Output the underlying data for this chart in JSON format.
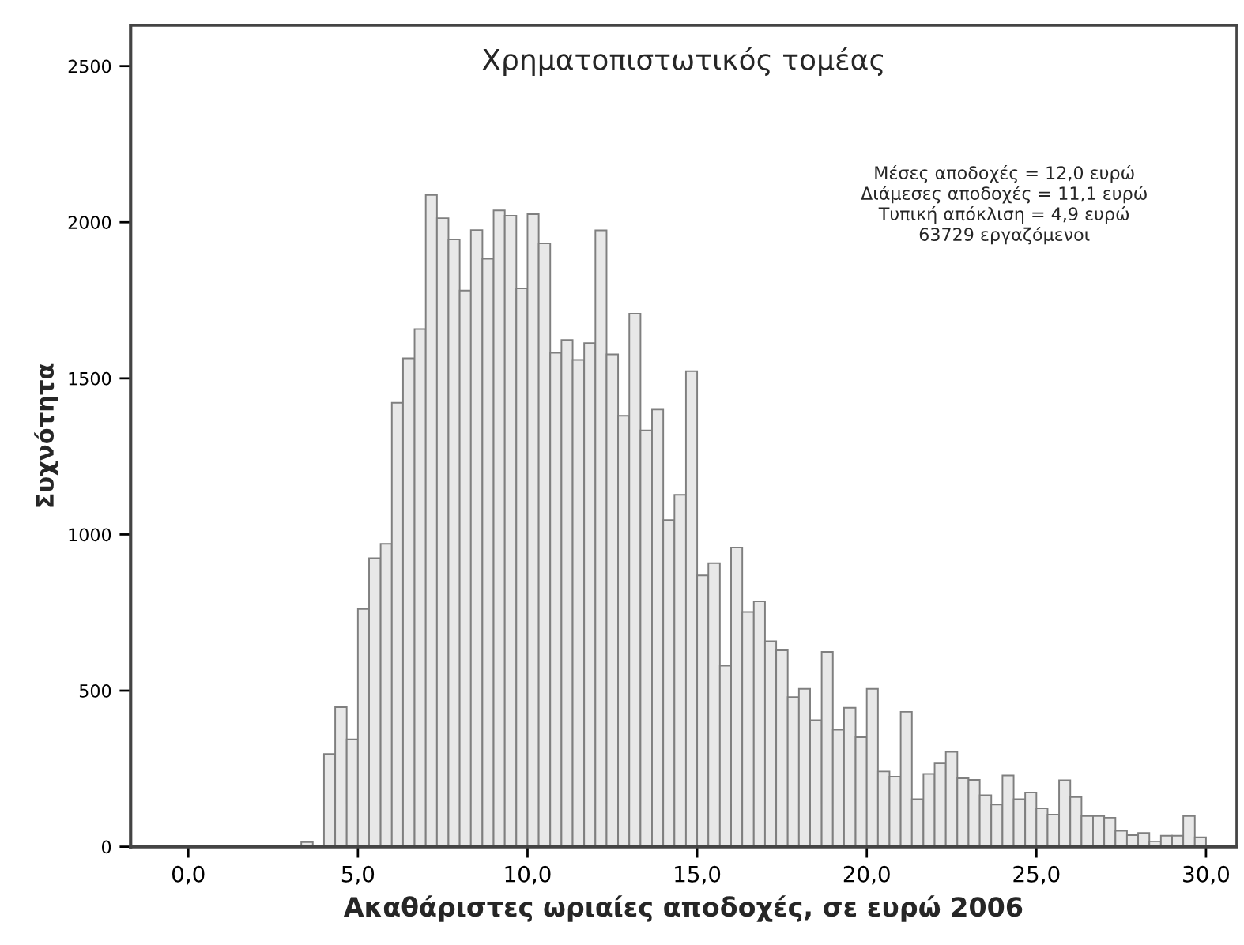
{
  "chart_data": {
    "type": "histogram",
    "title": "Χρηματοπιστωτικός τομέας",
    "xlabel": "Ακαθάριστες ωριαίες αποδοχές, σε ευρώ 2006",
    "ylabel": "Συχνότητα",
    "annotations": [
      "Μέσες αποδοχές = 12,0 ευρώ\nΔιάμεσες αποδοχές = 11,1 ευρώ\nΤυπική απόκλιση = 4,9 ευρώ\n63729 εργαζόμενοι"
    ],
    "bins": [
      3.33,
      3.67,
      4.0,
      4.33,
      4.67,
      5.0,
      5.33,
      5.67,
      6.0,
      6.33,
      6.67,
      7.0,
      7.33,
      7.67,
      8.0,
      8.33,
      8.67,
      9.0,
      9.33,
      9.67,
      10.0,
      10.33,
      10.67,
      11.0,
      11.33,
      11.67,
      12.0,
      12.33,
      12.67,
      13.0,
      13.33,
      13.67,
      14.0,
      14.33,
      14.67,
      15.0,
      15.33,
      15.67,
      16.0,
      16.33,
      16.67,
      17.0,
      17.33,
      17.67,
      18.0,
      18.33,
      18.67,
      19.0,
      19.33,
      19.67,
      20.0,
      20.33,
      20.67,
      21.0,
      21.33,
      21.67,
      22.0,
      22.33,
      22.67,
      23.0,
      23.33,
      23.67,
      24.0,
      24.33,
      24.67,
      25.0,
      25.33,
      25.67,
      26.0,
      26.33,
      26.67,
      27.0,
      27.33,
      27.67,
      28.0,
      28.33,
      28.67,
      29.0,
      29.33,
      29.67,
      30.0
    ],
    "values": [
      15,
      null,
      297,
      447,
      344,
      761,
      924,
      970,
      1422,
      1564,
      1658,
      2087,
      2013,
      1945,
      1781,
      1975,
      1883,
      2038,
      2021,
      1788,
      2026,
      1932,
      1582,
      1623,
      1559,
      1613,
      1974,
      1577,
      1380,
      1707,
      1333,
      1400,
      1046,
      1127,
      1523,
      869,
      908,
      580,
      958,
      752,
      786,
      658,
      629,
      479,
      506,
      405,
      624,
      375,
      445,
      351,
      506,
      241,
      224,
      432,
      152,
      233,
      267,
      304,
      219,
      214,
      165,
      135,
      228,
      152,
      174,
      123,
      103,
      213,
      159,
      98,
      98,
      93,
      51,
      37,
      44,
      17,
      35,
      35,
      98,
      30
    ],
    "color": "#e8e8e8",
    "xlim": [
      -1.7,
      30.9
    ],
    "ylim": [
      0,
      2630
    ],
    "xticks": [
      {
        "value": 0,
        "label": "0,0"
      },
      {
        "value": 5,
        "label": "5,0"
      },
      {
        "value": 10,
        "label": "10,0"
      },
      {
        "value": 15,
        "label": "15,0"
      },
      {
        "value": 20,
        "label": "20,0"
      },
      {
        "value": 25,
        "label": "25,0"
      },
      {
        "value": 30,
        "label": "30,0"
      }
    ],
    "yticks": [
      0,
      500,
      1000,
      1500,
      2000,
      2500
    ],
    "grid": false,
    "legend": false
  }
}
